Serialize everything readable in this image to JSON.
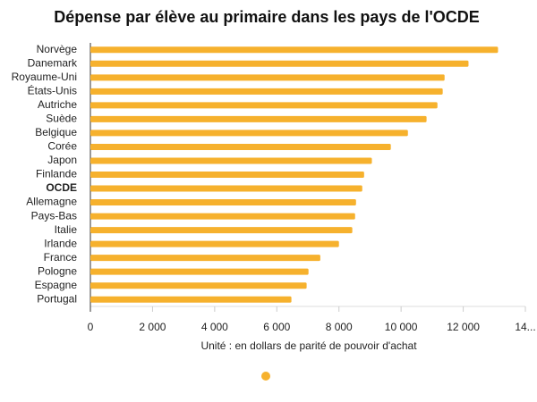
{
  "chart_data": {
    "type": "bar",
    "orientation": "horizontal",
    "title": "Dépense par élève au primaire dans les pays de l'OCDE",
    "x_label": "Unité : en dollars de parité de pouvoir d'achat",
    "categories": [
      "Norvège",
      "Danemark",
      "Royaume-Uni",
      "États-Unis",
      "Autriche",
      "Suède",
      "Belgique",
      "Corée",
      "Japon",
      "Finlande",
      "OCDE",
      "Allemagne",
      "Pays-Bas",
      "Italie",
      "Irlande",
      "France",
      "Pologne",
      "Espagne",
      "Portugal"
    ],
    "values": [
      13120,
      12170,
      11400,
      11340,
      11170,
      10820,
      10220,
      9670,
      9060,
      8810,
      8750,
      8550,
      8520,
      8430,
      8000,
      7400,
      7020,
      6960,
      6470
    ],
    "color": "#f6b12d",
    "highlight_index": 10,
    "xlim": [
      0,
      14000
    ],
    "xticks": [
      0,
      {
        "value": 2000,
        "label": "2 000"
      },
      {
        "value": 4000,
        "label": "4 000"
      },
      {
        "value": 6000,
        "label": "6 000"
      },
      {
        "value": 8000,
        "label": "8 000"
      },
      {
        "value": 10000,
        "label": "10 000"
      },
      {
        "value": 12000,
        "label": "12 000"
      },
      {
        "value": 14000,
        "label": "14..."
      }
    ],
    "legend": "bottom"
  }
}
